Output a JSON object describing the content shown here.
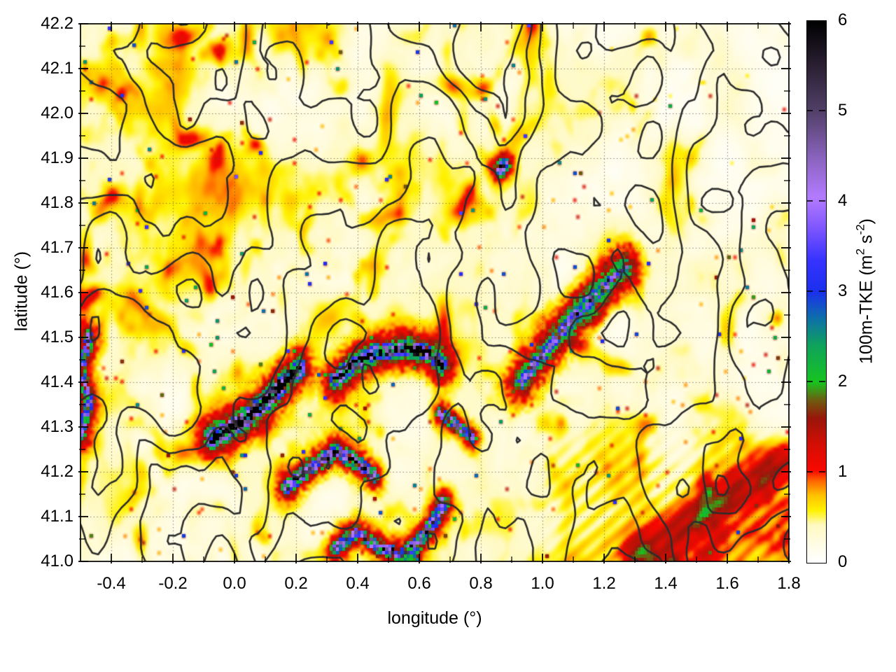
{
  "chart_data": {
    "type": "heatmap",
    "title": "",
    "xlabel": "longitude (°)",
    "ylabel": "latitude (°)",
    "x_range": [
      -0.5,
      1.8
    ],
    "y_range": [
      41.0,
      42.2
    ],
    "x_tick_labels": [
      "-0.4",
      "-0.2",
      "0.0",
      "0.2",
      "0.4",
      "0.6",
      "0.8",
      "1.0",
      "1.2",
      "1.4",
      "1.6",
      "1.8"
    ],
    "x_minor_step": 0.1,
    "y_tick_labels": [
      "41.0",
      "41.1",
      "41.2",
      "41.3",
      "41.4",
      "41.5",
      "41.6",
      "41.7",
      "41.8",
      "41.9",
      "42.0",
      "42.1",
      "42.2"
    ],
    "y_minor_step": 0.05,
    "grid": {
      "x_step": 0.2,
      "y_step": 0.1,
      "style": "dotted",
      "color": "rgba(70,70,70,0.75)"
    },
    "frame_color": "#000000",
    "colorbar": {
      "range": [
        0,
        6
      ],
      "tick_labels": [
        "0",
        "1",
        "2",
        "3",
        "4",
        "5",
        "6"
      ],
      "label_parts": {
        "prefix": "100m-TKE (m",
        "sup1": "2",
        "mid": " s",
        "sup2": "-2",
        "suffix": ")"
      },
      "palette_stops": [
        [
          0.0,
          "#ffffff"
        ],
        [
          0.2,
          "#fffce6"
        ],
        [
          0.42,
          "#fff9c0"
        ],
        [
          0.58,
          "#fff200"
        ],
        [
          0.75,
          "#ffc000"
        ],
        [
          0.9,
          "#ff6a00"
        ],
        [
          1.02,
          "#f80800"
        ],
        [
          1.3,
          "#d50e04"
        ],
        [
          1.6,
          "#99150a"
        ],
        [
          1.8,
          "#6e5c10"
        ],
        [
          2.0,
          "#17c41f"
        ],
        [
          2.4,
          "#0fa35a"
        ],
        [
          2.7,
          "#0d71a8"
        ],
        [
          3.0,
          "#1a2fec"
        ],
        [
          3.35,
          "#3633ff"
        ],
        [
          3.7,
          "#7d55ff"
        ],
        [
          4.05,
          "#b37bff"
        ],
        [
          4.5,
          "#8862bb"
        ],
        [
          5.0,
          "#524068"
        ],
        [
          5.5,
          "#2a2033"
        ],
        [
          6.0,
          "#000000"
        ]
      ]
    },
    "contour_overlay": {
      "meaning": "terrain elevation contours",
      "color": "#2d2d2d",
      "line_width": 2.6,
      "levels": [
        0.34,
        0.44,
        0.54,
        0.64,
        0.74
      ]
    },
    "field_description": "Smooth 0-1 m2/s2 white-yellow-orange background with red ridge filaments tied to terrain slopes; palest in the northeast corner; fine wave streaks and an orange diagonal band in the southeast corner; scattered red specks with occasional green centers; pixelated green/blue/violet/black cells along the strong bands.",
    "high_tke_bands": [
      {
        "name": "central-arc",
        "points": [
          [
            0.33,
            41.405
          ],
          [
            0.38,
            41.435
          ],
          [
            0.46,
            41.465
          ],
          [
            0.56,
            41.475
          ],
          [
            0.63,
            41.465
          ],
          [
            0.67,
            41.44
          ]
        ],
        "peak": 4.6,
        "core_width": 0.013,
        "halo": 1.7,
        "halo_width": 0.045,
        "speckled": true
      },
      {
        "name": "southwest-diagonal",
        "points": [
          [
            -0.07,
            41.275
          ],
          [
            0.0,
            41.3
          ],
          [
            0.07,
            41.335
          ],
          [
            0.13,
            41.375
          ],
          [
            0.175,
            41.41
          ],
          [
            0.21,
            41.43
          ]
        ],
        "peak": 5.3,
        "core_width": 0.015,
        "halo": 1.5,
        "halo_width": 0.05,
        "speckled": true
      },
      {
        "name": "south-band",
        "points": [
          [
            0.17,
            41.165
          ],
          [
            0.25,
            41.21
          ],
          [
            0.33,
            41.245
          ],
          [
            0.4,
            41.22
          ],
          [
            0.45,
            41.19
          ]
        ],
        "peak": 3.4,
        "core_width": 0.013,
        "halo": 1.4,
        "halo_width": 0.04,
        "speckled": true
      },
      {
        "name": "south-low-band",
        "points": [
          [
            0.33,
            41.03
          ],
          [
            0.4,
            41.065
          ],
          [
            0.47,
            41.03
          ],
          [
            0.55,
            41.015
          ],
          [
            0.6,
            41.045
          ],
          [
            0.65,
            41.09
          ],
          [
            0.68,
            41.13
          ]
        ],
        "peak": 3.0,
        "core_width": 0.012,
        "halo": 1.3,
        "halo_width": 0.035,
        "speckled": true
      },
      {
        "name": "east-spur",
        "points": [
          [
            0.67,
            41.33
          ],
          [
            0.73,
            41.3
          ],
          [
            0.77,
            41.275
          ]
        ],
        "peak": 3.0,
        "core_width": 0.011,
        "halo": 1.3,
        "halo_width": 0.03,
        "speckled": true
      },
      {
        "name": "northeast-ridge",
        "points": [
          [
            0.93,
            41.4
          ],
          [
            1.02,
            41.475
          ],
          [
            1.1,
            41.545
          ],
          [
            1.18,
            41.6
          ],
          [
            1.27,
            41.655
          ]
        ],
        "peak": 2.5,
        "core_width": 0.012,
        "halo": 1.8,
        "halo_width": 0.05,
        "speckled": true
      },
      {
        "name": "west-edge",
        "points": [
          [
            -0.5,
            41.285
          ],
          [
            -0.47,
            41.36
          ],
          [
            -0.5,
            41.425
          ],
          [
            -0.47,
            41.5
          ]
        ],
        "peak": 2.6,
        "core_width": 0.012,
        "halo": 1.2,
        "halo_width": 0.04,
        "speckled": true
      },
      {
        "name": "north-spot",
        "points": [
          [
            0.865,
            41.875
          ],
          [
            0.875,
            41.885
          ]
        ],
        "peak": 3.4,
        "core_width": 0.012,
        "halo": 1.6,
        "halo_width": 0.03,
        "speckled": true
      },
      {
        "name": "southeast-wave-streak",
        "points": [
          [
            1.3,
            41.02
          ],
          [
            1.45,
            41.08
          ],
          [
            1.6,
            41.14
          ],
          [
            1.79,
            41.225
          ]
        ],
        "peak": 0.9,
        "core_width": 0.05,
        "halo": 0.0,
        "halo_width": 0.01,
        "speckled": false
      }
    ]
  }
}
